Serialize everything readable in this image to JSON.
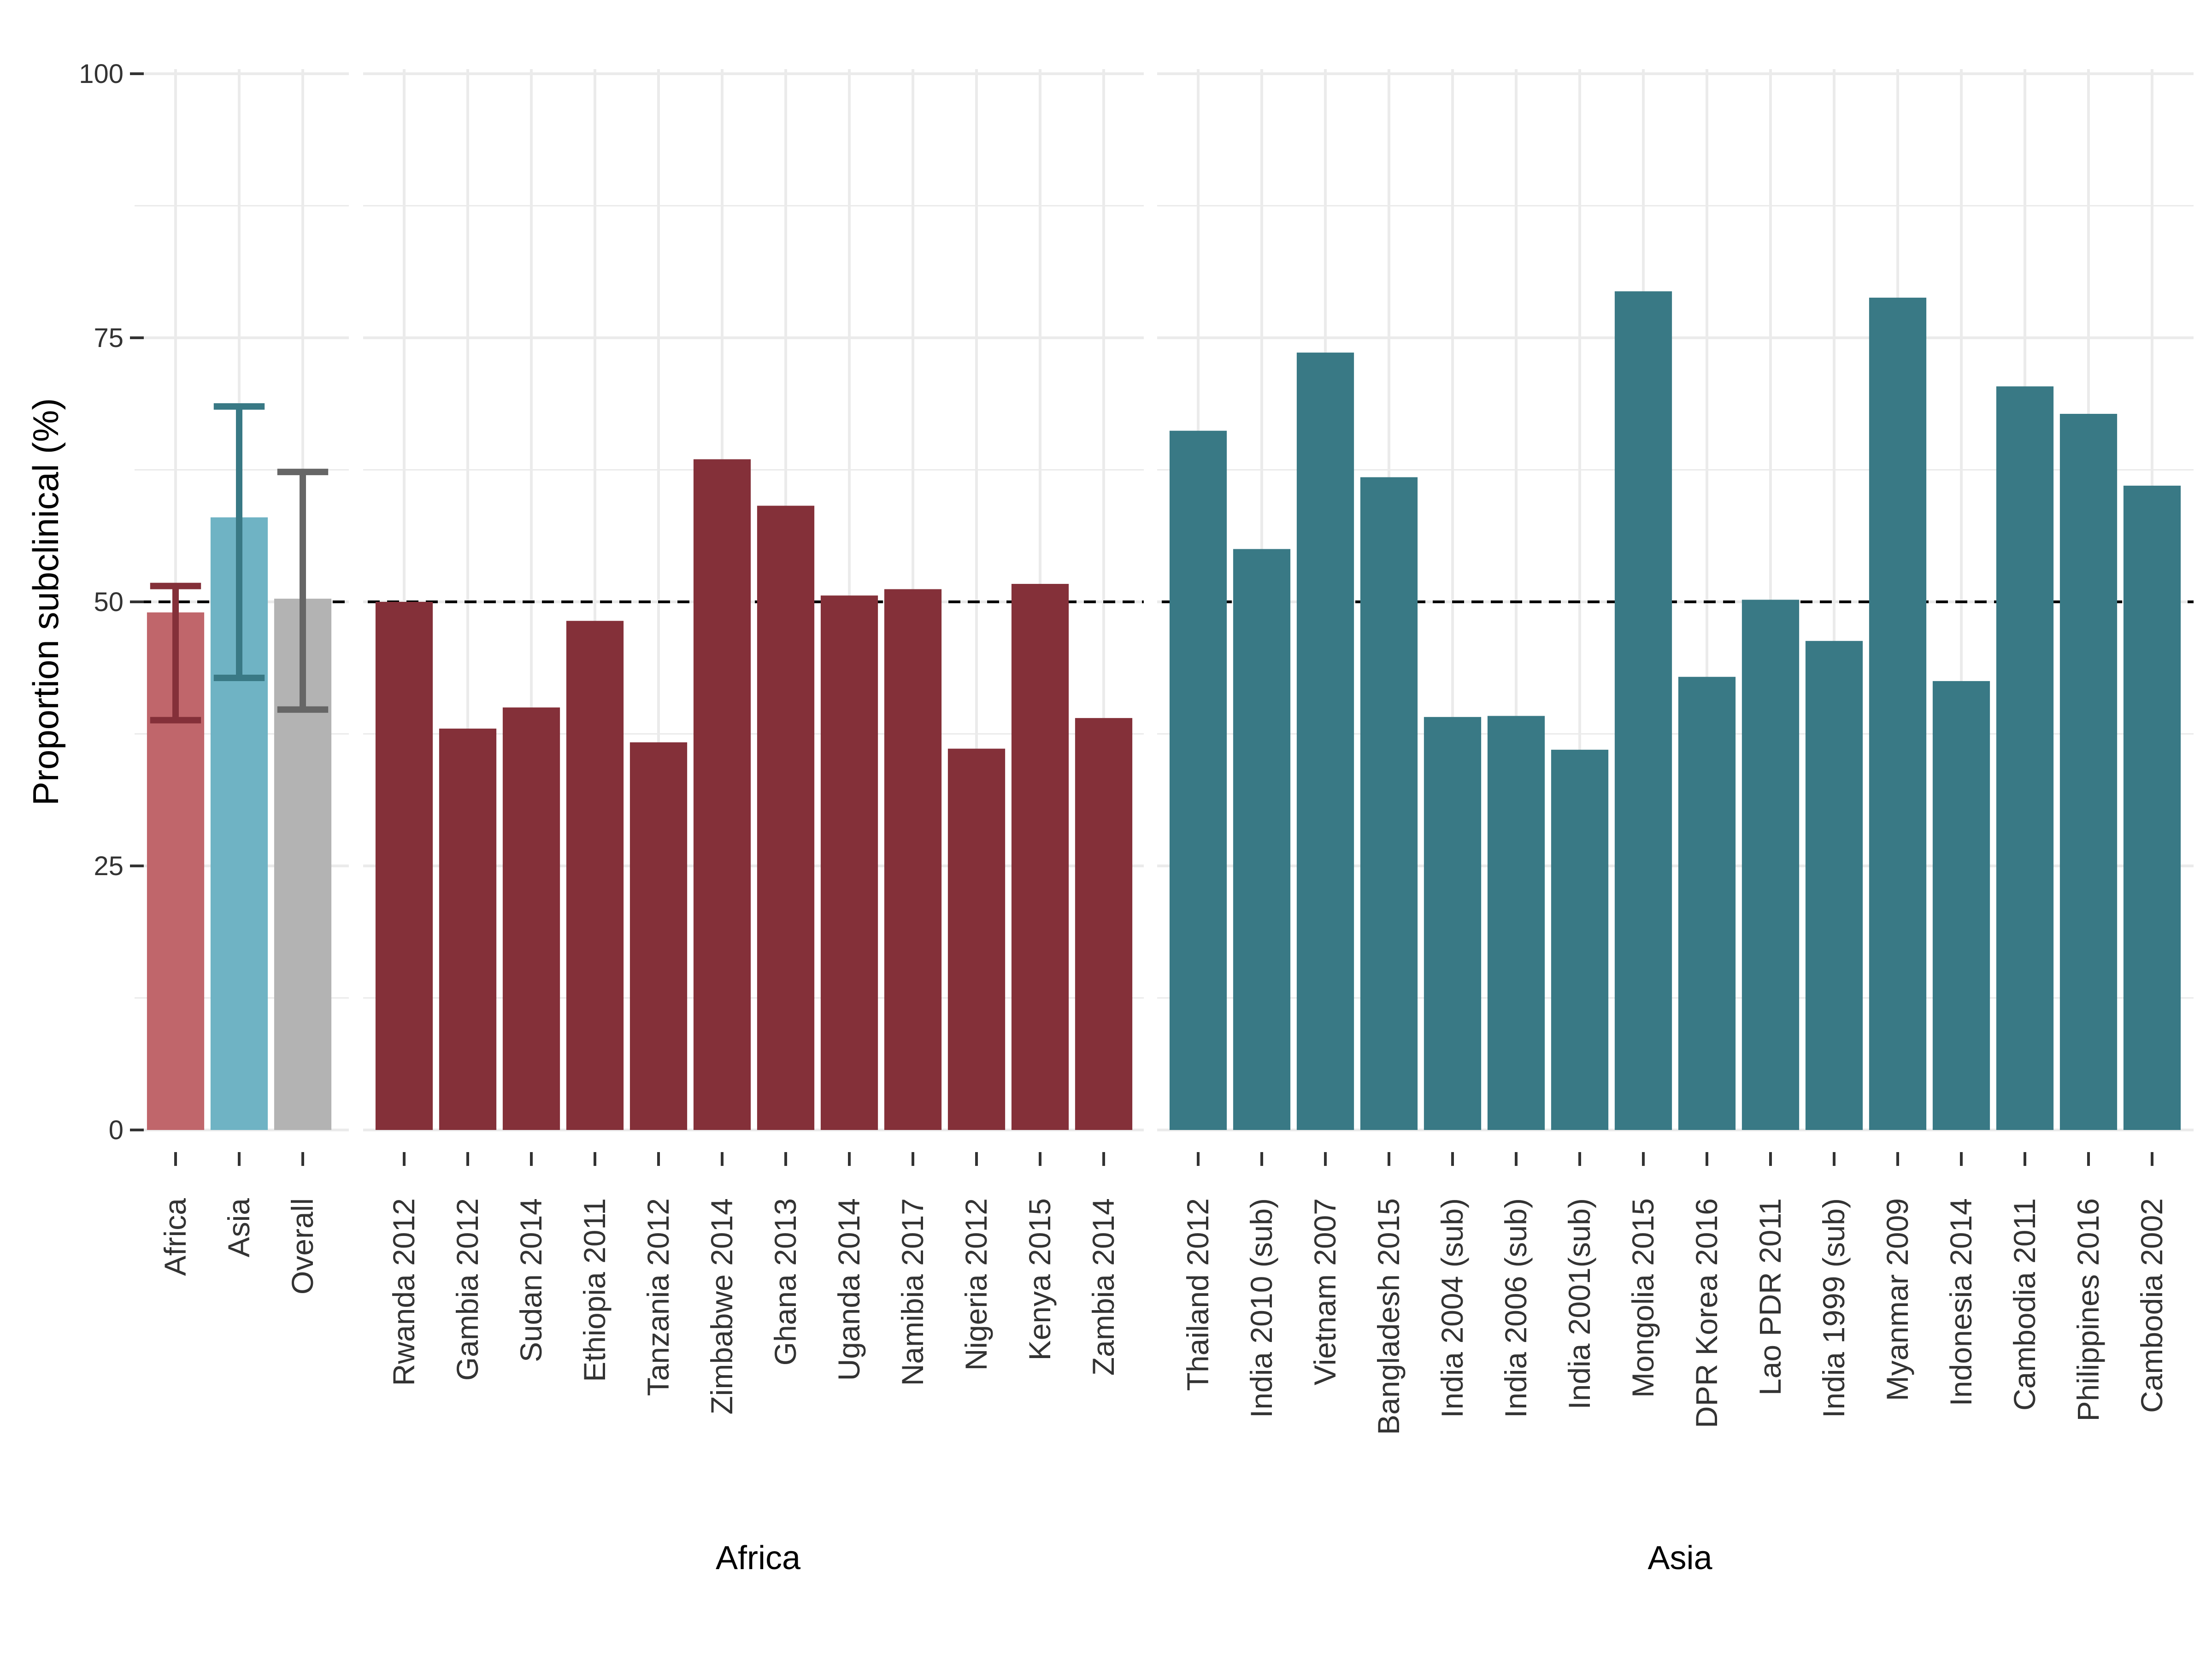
{
  "chart_data": {
    "type": "bar",
    "ylabel": "Proportion subclinical (%)",
    "ylim": [
      0,
      100
    ],
    "yticks": [
      0,
      25,
      50,
      75,
      100
    ],
    "reference_line": 50,
    "grid": true,
    "legend": "none",
    "colors": {
      "Africa": "#843039",
      "Asia": "#397985",
      "summary_Africa_bar": "#C0666B",
      "summary_Asia_bar": "#6FB3C4",
      "summary_Overall_bar": "#B3B3B3",
      "summary_Africa_error": "#843039",
      "summary_Asia_error": "#397985",
      "summary_Overall_error": "#666666",
      "reference_line": "#000000"
    },
    "panels": [
      {
        "title": "",
        "categories": [
          "Africa",
          "Asia",
          "Overall"
        ],
        "values": [
          49,
          58,
          50.3
        ],
        "error_low": [
          38.8,
          42.8,
          39.8
        ],
        "error_high": [
          51.5,
          68.5,
          62.3
        ]
      },
      {
        "title": "Africa",
        "categories": [
          "Rwanda 2012",
          "Gambia 2012",
          "Sudan 2014",
          "Ethiopia 2011",
          "Tanzania 2012",
          "Zimbabwe 2014",
          "Ghana 2013",
          "Uganda 2014",
          "Namibia 2017",
          "Nigeria 2012",
          "Kenya 2015",
          "Zambia 2014"
        ],
        "values": [
          50,
          38,
          40,
          48.2,
          36.7,
          63.5,
          59.1,
          50.6,
          51.2,
          36.1,
          51.7,
          39
        ]
      },
      {
        "title": "Asia",
        "categories": [
          "Thailand 2012",
          "India 2010 (sub)",
          "Vietnam 2007",
          "Bangladesh  2015",
          "India 2004 (sub)",
          "India 2006 (sub)",
          "India 2001(sub)",
          "Mongolia 2015",
          "DPR Korea 2016",
          "Lao PDR 2011",
          "India 1999 (sub)",
          "Myanmar 2009",
          "Indonesia 2014",
          "Cambodia 2011",
          "Philippines 2016",
          "Cambodia 2002"
        ],
        "values": [
          66.2,
          55,
          73.6,
          61.8,
          39.1,
          39.2,
          36,
          79.4,
          42.9,
          50.2,
          46.3,
          78.8,
          42.5,
          70.4,
          67.8,
          61
        ]
      }
    ]
  }
}
